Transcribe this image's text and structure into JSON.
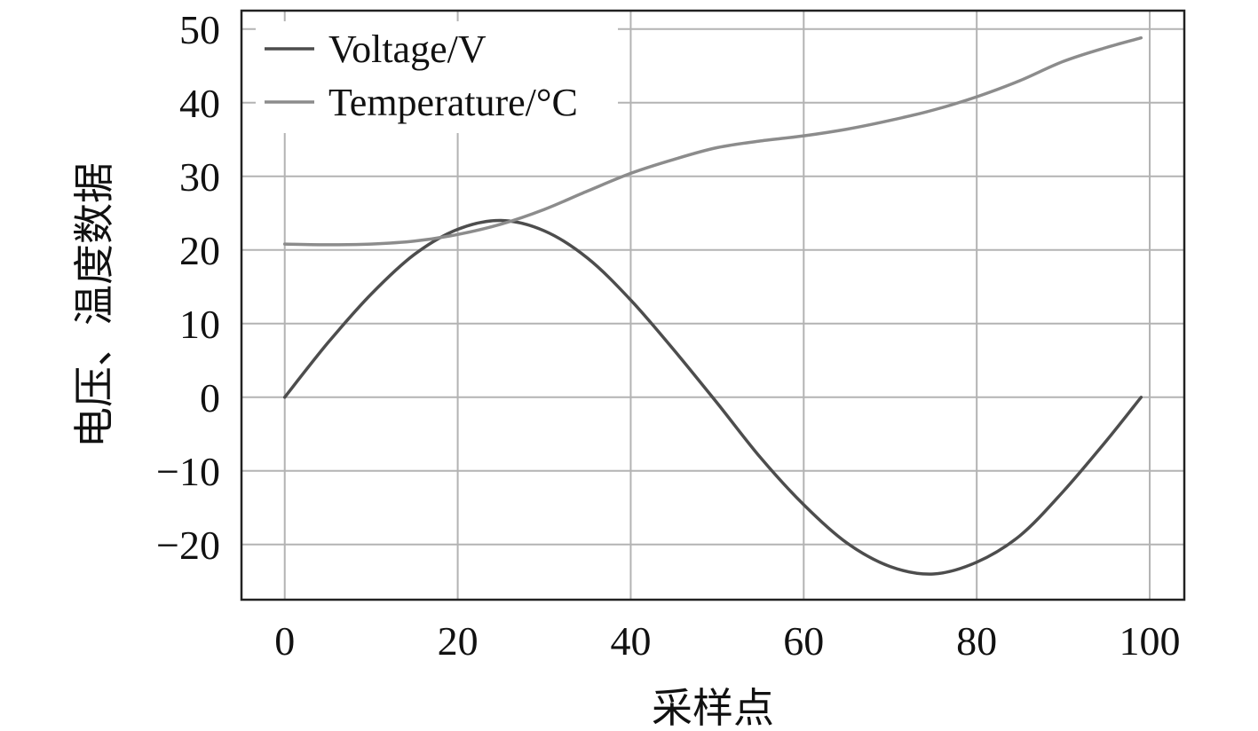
{
  "chart_data": {
    "type": "line",
    "title": "",
    "xlabel": "采样点",
    "ylabel": "电压、温度数据",
    "xlim": [
      -5,
      104
    ],
    "ylim": [
      -27.5,
      52.5
    ],
    "grid": true,
    "legend_placement": "top-left",
    "x_ticks": [
      0,
      20,
      40,
      60,
      80,
      100
    ],
    "x_tick_labels": [
      "0",
      "20",
      "40",
      "60",
      "80",
      "100"
    ],
    "y_ticks": [
      -20,
      -10,
      0,
      10,
      20,
      30,
      40,
      50
    ],
    "y_tick_labels": [
      "−20",
      "−10",
      "0",
      "10",
      "20",
      "30",
      "40",
      "50"
    ],
    "colors": {
      "voltage": "#4d4d4d",
      "temperature": "#8c8c8c",
      "grid": "#b3b3b3",
      "frame": "#222222"
    },
    "series": [
      {
        "name": "Voltage/V",
        "x": [
          0,
          5,
          10,
          15,
          20,
          25,
          30,
          35,
          40,
          45,
          50,
          55,
          60,
          65,
          70,
          75,
          80,
          85,
          90,
          95,
          99
        ],
        "y": [
          0,
          7.4,
          14.0,
          19.4,
          22.8,
          24.0,
          22.6,
          18.9,
          13.2,
          6.4,
          -0.8,
          -8.2,
          -14.6,
          -19.8,
          -23.0,
          -24.0,
          -22.4,
          -18.8,
          -12.8,
          -5.9,
          0
        ]
      },
      {
        "name": "Temperature/°C",
        "x": [
          0,
          5,
          10,
          15,
          20,
          25,
          30,
          35,
          40,
          45,
          50,
          55,
          60,
          65,
          70,
          75,
          80,
          85,
          90,
          95,
          99
        ],
        "y": [
          20.8,
          20.7,
          20.8,
          21.2,
          22.1,
          23.5,
          25.5,
          28.0,
          30.4,
          32.3,
          33.9,
          34.8,
          35.5,
          36.4,
          37.6,
          39.0,
          40.8,
          43.0,
          45.6,
          47.5,
          48.8
        ]
      }
    ]
  }
}
